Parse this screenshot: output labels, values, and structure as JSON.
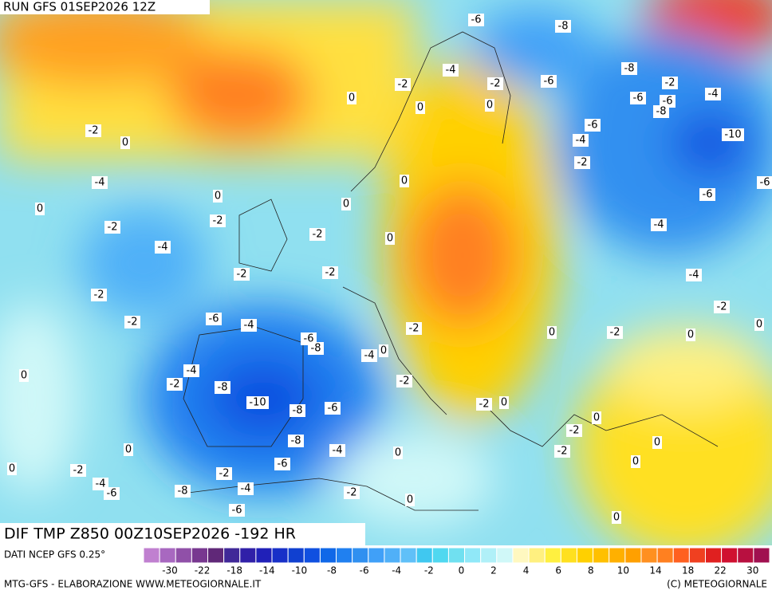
{
  "header": {
    "run": "RUN GFS 01SEP2026 12Z"
  },
  "map": {
    "title": "DIF TMP Z850 00Z10SEP2026 -192 HR",
    "contour_labels": [
      "-6",
      "-8",
      "-4",
      "-2",
      "-2",
      "-6",
      "-8",
      "-2",
      "0",
      "0",
      "0",
      "-6",
      "-6",
      "-8",
      "-4",
      "-2",
      "0",
      "-6",
      "-4",
      "-10",
      "-2",
      "-4",
      "0",
      "-6",
      "0",
      "-6",
      "0",
      "0",
      "-2",
      "-2",
      "-4",
      "-2",
      "0",
      "-4",
      "-2",
      "-2",
      "-4",
      "-2",
      "-2",
      "-2",
      "-6",
      "-4",
      "0",
      "-2",
      "0",
      "-2",
      "0",
      "-6",
      "-8",
      "0",
      "-4",
      "0",
      "-4",
      "-2",
      "-8",
      "-2",
      "-10",
      "-2",
      "0",
      "-8",
      "-6",
      "0",
      "-2",
      "0",
      "-8",
      "0",
      "-4",
      "-6",
      "0",
      "-2",
      "0",
      "0",
      "-2",
      "-2",
      "-4",
      "-6",
      "-8",
      "-4",
      "-2",
      "0",
      "-6",
      "0"
    ]
  },
  "colorbar": {
    "source": "DATI NCEP GFS 0.25°",
    "colors": [
      "#c080d0",
      "#a868c0",
      "#9050a8",
      "#783890",
      "#602878",
      "#402898",
      "#3020a8",
      "#2020b8",
      "#1830c8",
      "#1040d0",
      "#1050e0",
      "#1068e8",
      "#2080f0",
      "#3090f0",
      "#40a0f8",
      "#50b0f8",
      "#60c0f8",
      "#40c8f0",
      "#50d8f0",
      "#70e0f0",
      "#90e8f8",
      "#b0f0f8",
      "#d0f8f8",
      "#fff8c0",
      "#fff080",
      "#fff040",
      "#ffe020",
      "#ffd000",
      "#ffc000",
      "#ffb000",
      "#ffa000",
      "#ff9020",
      "#ff8020",
      "#ff6020",
      "#f04020",
      "#e02020",
      "#d01030",
      "#b81040",
      "#a01050"
    ],
    "labels": [
      "-30",
      "-22",
      "-18",
      "-14",
      "-10",
      "-8",
      "-6",
      "-4",
      "-2",
      "0",
      "2",
      "4",
      "6",
      "8",
      "10",
      "14",
      "18",
      "22",
      "30"
    ]
  },
  "footer": {
    "left": "MTG-GFS - ELABORAZIONE WWW.METEOGIORNALE.IT",
    "right": "(C) METEOGIORNALE"
  }
}
